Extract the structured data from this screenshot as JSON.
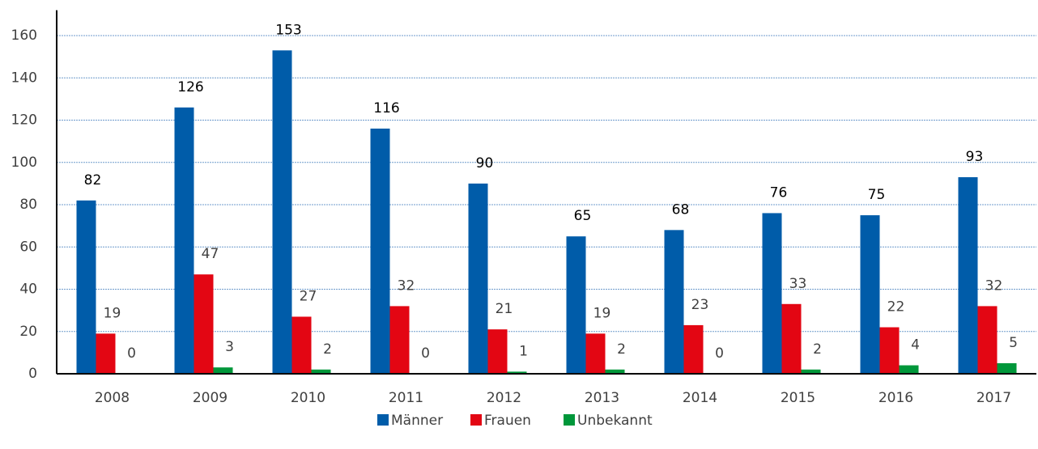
{
  "chart_data": {
    "type": "bar",
    "categories": [
      "2008",
      "2009",
      "2010",
      "2011",
      "2012",
      "2013",
      "2014",
      "2015",
      "2016",
      "2017"
    ],
    "series": [
      {
        "name": "Männer",
        "color": "#005ca9",
        "values": [
          82,
          126,
          153,
          116,
          90,
          65,
          68,
          76,
          75,
          93
        ]
      },
      {
        "name": "Frauen",
        "color": "#e30613",
        "values": [
          19,
          47,
          27,
          32,
          21,
          19,
          23,
          33,
          22,
          32
        ]
      },
      {
        "name": "Unbekannt",
        "color": "#00973a",
        "values": [
          0,
          3,
          2,
          0,
          1,
          2,
          0,
          2,
          4,
          5
        ]
      }
    ],
    "ylim": [
      0,
      172
    ],
    "yticks": [
      0,
      20,
      40,
      60,
      80,
      100,
      120,
      140,
      160
    ],
    "grid": true,
    "legend": "bottom"
  }
}
